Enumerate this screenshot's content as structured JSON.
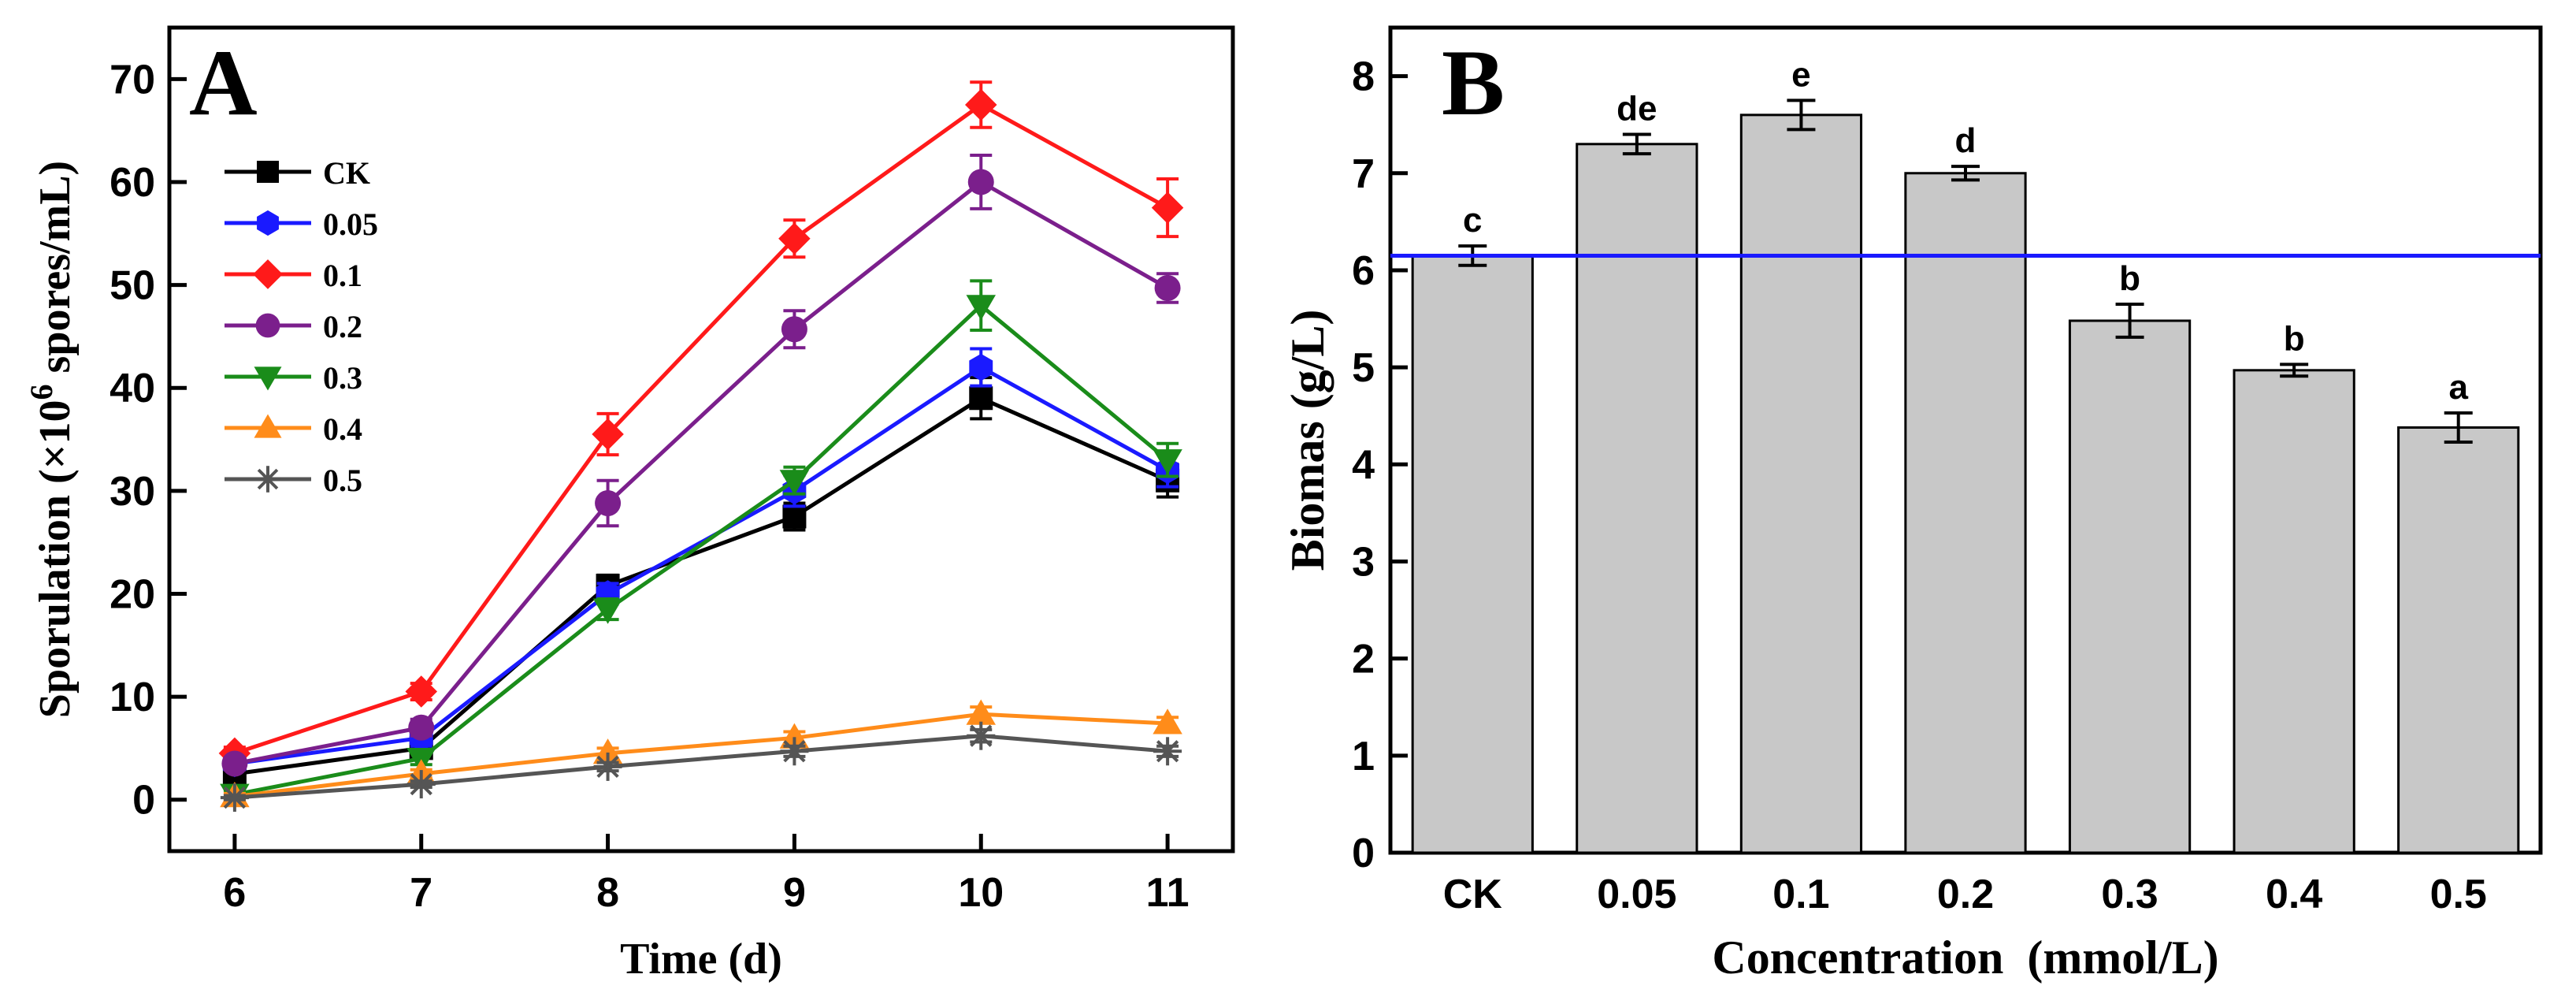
{
  "chart_data": [
    {
      "type": "line",
      "panel_label": "A",
      "xlabel": "Time (d)",
      "ylabel_prefix": "Sporulation (×10",
      "ylabel_sup": "6",
      "ylabel_suffix": " spores/mL)",
      "x": [
        6,
        7,
        8,
        9,
        10,
        11
      ],
      "xlim": [
        5.65,
        11.35
      ],
      "ylim": [
        -5,
        75
      ],
      "yticks": [
        0,
        10,
        20,
        30,
        40,
        50,
        60,
        70
      ],
      "xticks": [
        6,
        7,
        8,
        9,
        10,
        11
      ],
      "legend_position": "top-left",
      "series": [
        {
          "name": "CK",
          "color": "#000000",
          "marker": "square",
          "values": [
            2.5,
            5.0,
            20.8,
            27.5,
            39.0,
            31.0
          ],
          "errors": [
            0.6,
            0.8,
            1.0,
            1.3,
            2.0,
            1.6
          ]
        },
        {
          "name": "0.05",
          "color": "#1a1aff",
          "marker": "hexagon",
          "values": [
            3.5,
            6.0,
            20.0,
            30.0,
            42.0,
            32.0
          ],
          "errors": [
            0.6,
            0.8,
            1.0,
            1.5,
            1.8,
            1.6
          ]
        },
        {
          "name": "0.1",
          "color": "#ff1a1a",
          "marker": "diamond",
          "values": [
            4.5,
            10.5,
            35.5,
            54.5,
            67.5,
            57.5
          ],
          "errors": [
            0.6,
            0.8,
            2.0,
            1.8,
            2.2,
            2.8
          ]
        },
        {
          "name": "0.2",
          "color": "#7b1f8c",
          "marker": "circle",
          "values": [
            3.5,
            7.0,
            28.8,
            45.7,
            60.0,
            49.7
          ],
          "errors": [
            0.6,
            0.8,
            2.2,
            1.8,
            2.6,
            1.4
          ]
        },
        {
          "name": "0.3",
          "color": "#1a8c1a",
          "marker": "triangle-down",
          "values": [
            0.5,
            4.0,
            18.5,
            31.0,
            48.0,
            33.0
          ],
          "errors": [
            0.4,
            0.6,
            1.0,
            1.3,
            2.4,
            1.6
          ]
        },
        {
          "name": "0.4",
          "color": "#ff8c1a",
          "marker": "triangle-up",
          "values": [
            0.3,
            2.5,
            4.5,
            6.0,
            8.3,
            7.4
          ],
          "errors": [
            0.3,
            0.4,
            0.5,
            0.6,
            0.7,
            0.6
          ]
        },
        {
          "name": "0.5",
          "color": "#555555",
          "marker": "asterisk",
          "values": [
            0.2,
            1.5,
            3.2,
            4.7,
            6.2,
            4.7
          ],
          "errors": [
            0.2,
            0.3,
            0.4,
            0.5,
            0.6,
            0.5
          ]
        }
      ]
    },
    {
      "type": "bar",
      "panel_label": "B",
      "xlabel": "Concentration  (mmol/L)",
      "ylabel": "Biomas (g/L)",
      "categories": [
        "CK",
        "0.05",
        "0.1",
        "0.2",
        "0.3",
        "0.4",
        "0.5"
      ],
      "values": [
        6.15,
        7.3,
        7.6,
        7.0,
        5.48,
        4.97,
        4.38
      ],
      "errors": [
        0.1,
        0.1,
        0.15,
        0.07,
        0.17,
        0.06,
        0.15
      ],
      "significance": [
        "c",
        "de",
        "e",
        "d",
        "b",
        "b",
        "a"
      ],
      "reference_line": 6.15,
      "reference_line_color": "#1a1aff",
      "bar_color": "#c8c8c8",
      "ylim": [
        0,
        8.5
      ],
      "yticks": [
        0,
        1,
        2,
        3,
        4,
        5,
        6,
        7,
        8
      ]
    }
  ]
}
